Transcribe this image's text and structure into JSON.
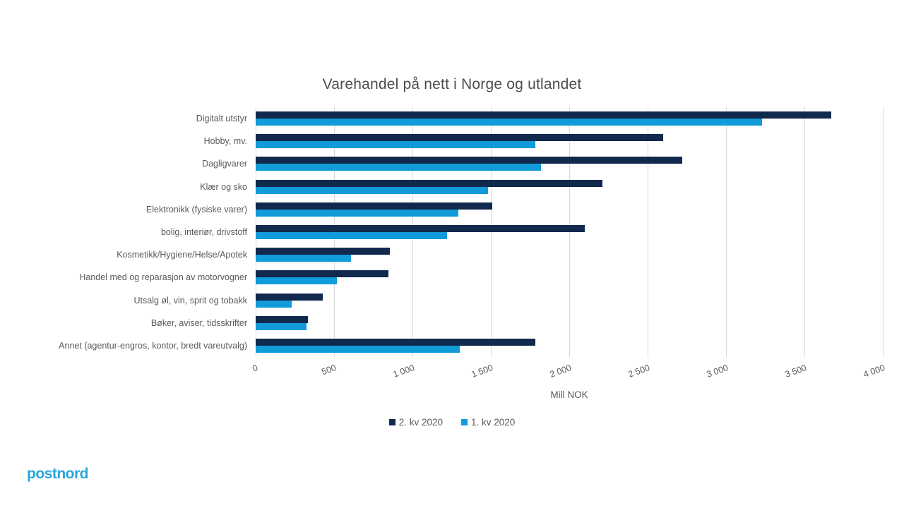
{
  "title": "Varehandel på nett i Norge og utlandet",
  "chart_data": {
    "type": "bar",
    "orientation": "horizontal",
    "title": "Varehandel på nett i Norge og utlandet",
    "xlabel": "Mill NOK",
    "xlim": [
      0,
      4000
    ],
    "xticks": [
      "0",
      "500",
      "1 000",
      "1 500",
      "2 000",
      "2 500",
      "3 000",
      "3 500",
      "4 000"
    ],
    "grid": true,
    "legend_position": "bottom",
    "categories": [
      "Digitalt utstyr",
      "Hobby, mv.",
      "Dagligvarer",
      "Klær og sko",
      "Elektronikk (fysiske varer)",
      "bolig, interiør, drivstoff",
      "Kosmetikk/Hygiene/Helse/Apotek",
      "Handel med og reparasjon av motorvogner",
      "Utsalg øl, vin, sprit og tobakk",
      "Bøker, aviser, tidsskrifter",
      "Annet (agentur-engros, kontor, bredt vareutvalg)"
    ],
    "series": [
      {
        "name": "2. kv 2020",
        "color": "#12294e",
        "values": [
          3670,
          2600,
          2720,
          2210,
          1510,
          2100,
          855,
          845,
          430,
          335,
          1785
        ]
      },
      {
        "name": "1. kv 2020",
        "color": "#119bd8",
        "values": [
          3230,
          1785,
          1820,
          1480,
          1295,
          1220,
          610,
          520,
          230,
          325,
          1300
        ]
      }
    ]
  },
  "colors": {
    "series_dark": "#12294e",
    "series_light": "#119bd8",
    "gridline": "#d9d9d9",
    "text": "#595959",
    "logo": "#2aa6dc"
  },
  "footer": {
    "logo_text": "postnord"
  }
}
